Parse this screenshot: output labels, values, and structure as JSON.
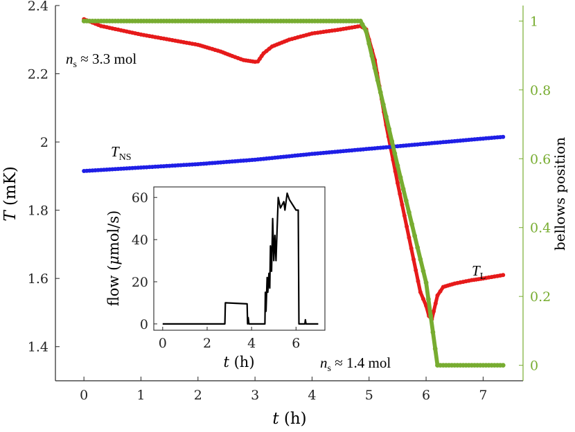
{
  "chart_data": {
    "type": "scatter",
    "x_axis": {
      "label_var": "t",
      "label_unit": "(h)",
      "range": [
        -0.5,
        7.7
      ],
      "ticks": [
        0,
        1,
        2,
        3,
        4,
        5,
        6,
        7
      ],
      "tick_labels": [
        "0",
        "1",
        "2",
        "3",
        "4",
        "5",
        "6",
        "7"
      ]
    },
    "y_left": {
      "label_var": "T",
      "label_unit": "(mK)",
      "range": [
        1.3,
        2.4
      ],
      "ticks": [
        1.4,
        1.6,
        1.8,
        2.0,
        2.2,
        2.4
      ],
      "tick_labels": [
        "1.4",
        "1.6",
        "1.8",
        "2",
        "2.2",
        "2.4"
      ]
    },
    "y_right": {
      "label": "bellows position",
      "range": [
        -0.045,
        1.045
      ],
      "ticks": [
        0,
        0.2,
        0.4,
        0.6,
        0.8,
        1
      ],
      "tick_labels": [
        "0",
        "0.2",
        "0.4",
        "0.6",
        "0.8",
        "1"
      ],
      "color": "#77ac30"
    },
    "series": [
      {
        "name": "T_NS",
        "axis": "left",
        "color": "#1f1fe6",
        "points": [
          [
            0.0,
            1.915
          ],
          [
            1.0,
            1.925
          ],
          [
            2.0,
            1.935
          ],
          [
            3.0,
            1.948
          ],
          [
            4.0,
            1.965
          ],
          [
            5.0,
            1.98
          ],
          [
            6.0,
            1.995
          ],
          [
            7.0,
            2.01
          ],
          [
            7.35,
            2.015
          ]
        ]
      },
      {
        "name": "T_L",
        "axis": "left",
        "color": "#e61a1a",
        "points": [
          [
            0.0,
            2.36
          ],
          [
            0.3,
            2.34
          ],
          [
            1.0,
            2.315
          ],
          [
            1.5,
            2.3
          ],
          [
            2.0,
            2.285
          ],
          [
            2.2,
            2.275
          ],
          [
            2.4,
            2.265
          ],
          [
            2.6,
            2.252
          ],
          [
            2.8,
            2.24
          ],
          [
            3.0,
            2.235
          ],
          [
            3.05,
            2.236
          ],
          [
            3.15,
            2.26
          ],
          [
            3.3,
            2.28
          ],
          [
            3.6,
            2.3
          ],
          [
            4.0,
            2.318
          ],
          [
            4.5,
            2.33
          ],
          [
            4.85,
            2.34
          ],
          [
            4.95,
            2.33
          ],
          [
            5.1,
            2.24
          ],
          [
            5.3,
            2.05
          ],
          [
            5.5,
            1.88
          ],
          [
            5.7,
            1.72
          ],
          [
            5.9,
            1.56
          ],
          [
            6.0,
            1.52
          ],
          [
            6.05,
            1.49
          ],
          [
            6.1,
            1.48
          ],
          [
            6.2,
            1.55
          ],
          [
            6.3,
            1.575
          ],
          [
            6.5,
            1.585
          ],
          [
            6.8,
            1.595
          ],
          [
            7.0,
            1.6
          ],
          [
            7.35,
            1.61
          ]
        ]
      },
      {
        "name": "bellows position",
        "axis": "right",
        "color": "#77ac30",
        "points": [
          [
            0.0,
            1.0
          ],
          [
            1.0,
            1.0
          ],
          [
            2.0,
            1.0
          ],
          [
            3.0,
            1.0
          ],
          [
            4.0,
            1.0
          ],
          [
            4.85,
            1.0
          ],
          [
            4.95,
            0.97
          ],
          [
            5.5,
            0.58
          ],
          [
            6.0,
            0.24
          ],
          [
            6.2,
            0.0
          ],
          [
            7.35,
            0.0
          ]
        ]
      }
    ],
    "series_labels": {
      "t_ns": {
        "base": "T",
        "sub": "NS"
      },
      "t_l": {
        "base": "T",
        "sub": "L"
      }
    },
    "annotations": {
      "n_s_start": {
        "var": "n",
        "sub": "s",
        "text": " ≈ 3.3 mol"
      },
      "n_s_end": {
        "var": "n",
        "sub": "s",
        "text": " ≈ 1.4 mol"
      }
    },
    "inset": {
      "type": "line",
      "color": "#000000",
      "xlabel_var": "t",
      "xlabel_unit": "(h)",
      "ylabel_text": "flow (",
      "ylabel_mu": "μ",
      "ylabel_unit": "mol/s)",
      "x_range": [
        -0.4,
        7.3
      ],
      "y_range": [
        -3,
        65
      ],
      "x_ticks": [
        0,
        2,
        4,
        6
      ],
      "x_tick_labels": [
        "0",
        "2",
        "4",
        "6"
      ],
      "y_ticks": [
        0,
        20,
        40,
        60
      ],
      "y_tick_labels": [
        "0",
        "20",
        "40",
        "60"
      ],
      "points": [
        [
          0,
          0
        ],
        [
          2.8,
          0
        ],
        [
          2.82,
          10
        ],
        [
          3.8,
          9.5
        ],
        [
          3.82,
          0
        ],
        [
          3.85,
          3
        ],
        [
          3.88,
          0
        ],
        [
          4.6,
          0
        ],
        [
          4.62,
          15
        ],
        [
          4.65,
          6
        ],
        [
          4.7,
          22
        ],
        [
          4.73,
          15
        ],
        [
          4.78,
          24
        ],
        [
          4.82,
          17
        ],
        [
          4.85,
          37
        ],
        [
          4.9,
          25
        ],
        [
          4.95,
          50
        ],
        [
          5.0,
          30
        ],
        [
          5.05,
          42
        ],
        [
          5.1,
          30
        ],
        [
          5.15,
          45
        ],
        [
          5.2,
          60
        ],
        [
          5.3,
          55
        ],
        [
          5.45,
          58
        ],
        [
          5.5,
          54
        ],
        [
          5.6,
          62
        ],
        [
          5.7,
          59
        ],
        [
          6.0,
          54
        ],
        [
          6.1,
          54
        ],
        [
          6.13,
          0
        ],
        [
          6.4,
          0
        ],
        [
          6.42,
          2
        ],
        [
          6.45,
          0
        ],
        [
          7.0,
          0
        ]
      ]
    }
  }
}
